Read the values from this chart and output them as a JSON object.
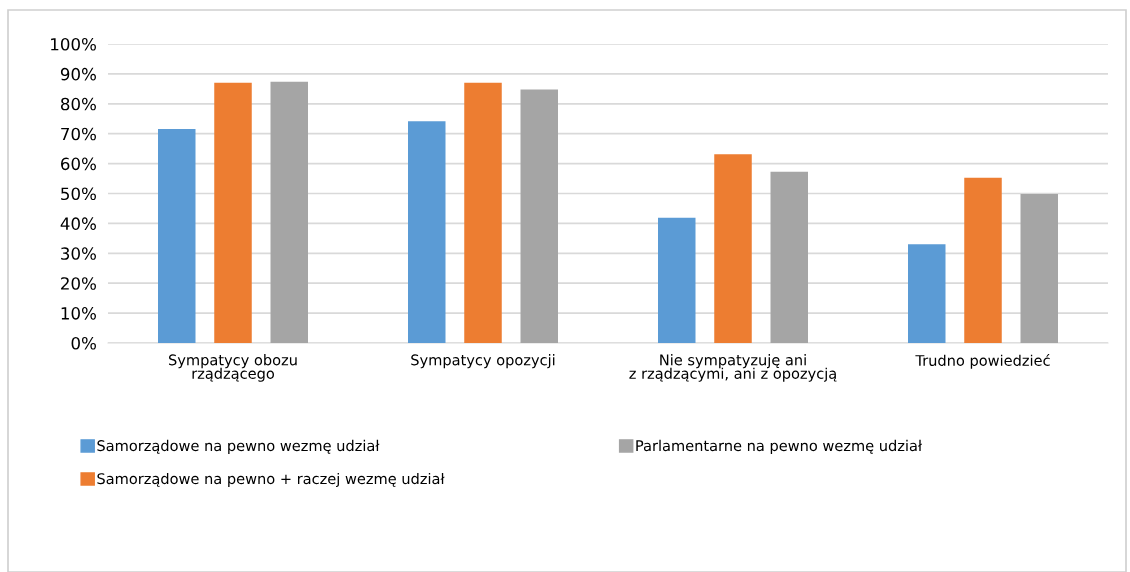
{
  "chart_data": {
    "type": "bar",
    "categories": [
      "Sympatycy obozu\nrządzącego",
      "Sympatycy opozycji",
      "Nie sympatyzuję ani\nz rządzącymi, ani z opozycją",
      "Trudno powiedzieć"
    ],
    "series": [
      {
        "name": "Samorządowe na pewno wezmę udział",
        "color": "#5b9bd5",
        "values": [
          71.6,
          74.2,
          41.9,
          33.0
        ]
      },
      {
        "name": "Samorządowe na pewno + raczej wezmę udział",
        "color": "#ed7d31",
        "values": [
          87.0,
          87.0,
          63.1,
          55.3
        ]
      },
      {
        "name": "Parlamentarne na pewno wezmę udział",
        "color": "#a5a5a5",
        "values": [
          87.4,
          84.8,
          57.3,
          49.8
        ]
      }
    ],
    "ylim": [
      0,
      100
    ],
    "yticks": [
      {
        "value": 0,
        "label": "0%"
      },
      {
        "value": 10,
        "label": "10%"
      },
      {
        "value": 20,
        "label": "20%"
      },
      {
        "value": 30,
        "label": "30%"
      },
      {
        "value": 40,
        "label": "40%"
      },
      {
        "value": 50,
        "label": "50%"
      },
      {
        "value": 60,
        "label": "60%"
      },
      {
        "value": 70,
        "label": "70%"
      },
      {
        "value": 80,
        "label": "80%"
      },
      {
        "value": 90,
        "label": "90%"
      },
      {
        "value": 100,
        "label": "100%"
      }
    ],
    "grid": "y",
    "legend": "bottom"
  }
}
